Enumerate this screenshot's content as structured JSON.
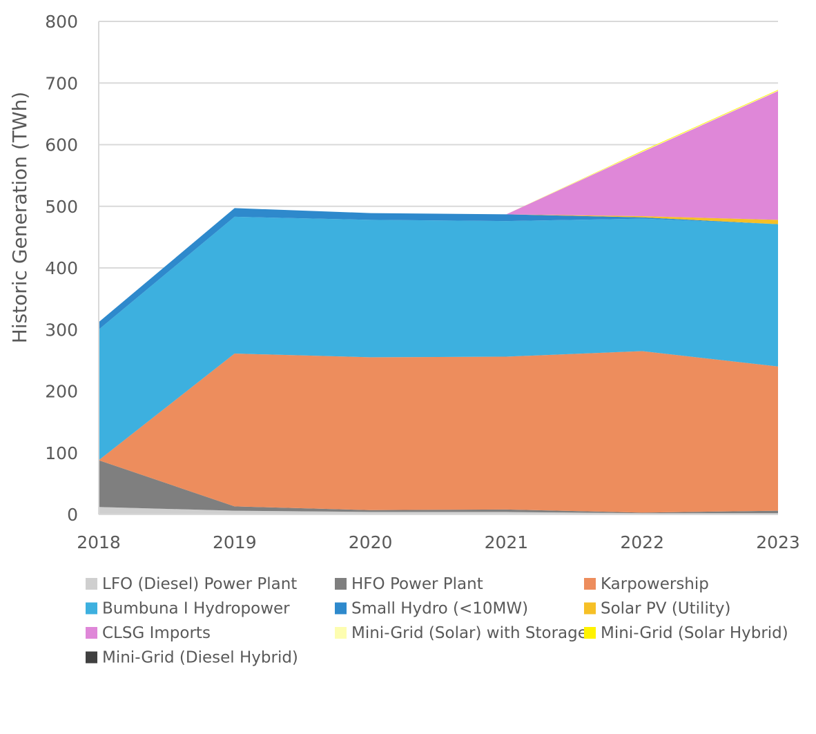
{
  "chart_data": {
    "type": "area",
    "stacked": true,
    "title": "",
    "xlabel": "",
    "ylabel": "Historic Generation (TWh)",
    "ylim": [
      0,
      800
    ],
    "yticks": [
      "0",
      "100",
      "200",
      "300",
      "400",
      "500",
      "600",
      "700",
      "800"
    ],
    "categories": [
      "2018",
      "2019",
      "2020",
      "2021",
      "2022",
      "2023"
    ],
    "grid": true,
    "legend_position": "bottom",
    "series": [
      {
        "name": "LFO (Diesel) Power Plant",
        "color": "#cfcfcf",
        "values": [
          12,
          6,
          4,
          4,
          2,
          2
        ]
      },
      {
        "name": "HFO Power Plant",
        "color": "#7f7f7f",
        "values": [
          76,
          7,
          3,
          4,
          1,
          4
        ]
      },
      {
        "name": "Karpowership",
        "color": "#ed8d5d",
        "values": [
          0,
          248,
          248,
          248,
          262,
          234
        ]
      },
      {
        "name": "Bumbuna I Hydropower",
        "color": "#3db0df",
        "values": [
          212,
          222,
          223,
          220,
          215,
          231
        ]
      },
      {
        "name": "Small Hydro (<10MW)",
        "color": "#2e89cc",
        "values": [
          12,
          14,
          11,
          11,
          2,
          0
        ]
      },
      {
        "name": "Solar PV (Utility)",
        "color": "#f6c026",
        "values": [
          0,
          0,
          0,
          0,
          2,
          7
        ]
      },
      {
        "name": "CLSG Imports",
        "color": "#df87d8",
        "values": [
          0,
          0,
          0,
          0,
          104,
          209
        ]
      },
      {
        "name": "Mini-Grid (Solar) with Storage",
        "color": "#fdfdb0",
        "values": [
          0,
          0,
          0,
          0,
          1,
          1
        ]
      },
      {
        "name": "Mini-Grid (Solar Hybrid)",
        "color": "#fff200",
        "values": [
          0,
          0,
          0,
          0,
          1,
          1
        ]
      },
      {
        "name": "Mini-Grid (Diesel Hybrid)",
        "color": "#404040",
        "values": [
          0,
          0,
          0,
          0,
          0,
          0
        ]
      }
    ]
  }
}
